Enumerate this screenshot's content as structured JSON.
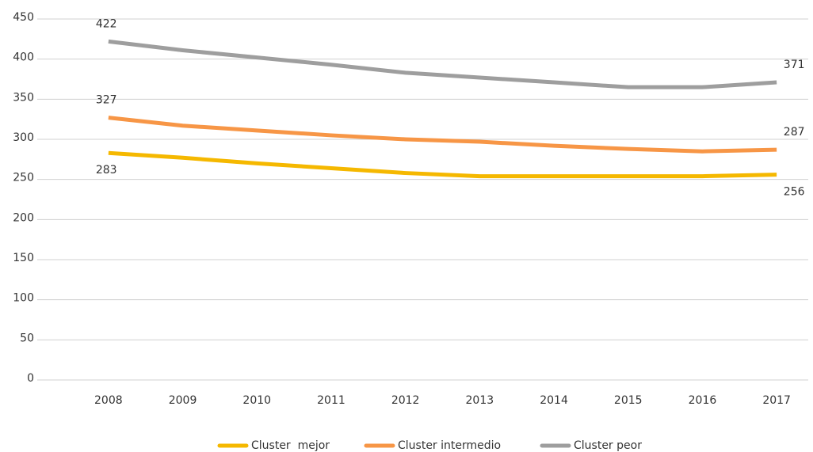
{
  "chart_data": {
    "type": "line",
    "categories": [
      "2008",
      "2009",
      "2010",
      "2011",
      "2012",
      "2013",
      "2014",
      "2015",
      "2016",
      "2017"
    ],
    "series": [
      {
        "name": "Cluster  mejor",
        "color": "#f5b800",
        "values": [
          283,
          277,
          270,
          264,
          258,
          254,
          254,
          254,
          254,
          256
        ]
      },
      {
        "name": "Cluster intermedio",
        "color": "#f79646",
        "values": [
          327,
          317,
          311,
          305,
          300,
          297,
          292,
          288,
          285,
          287
        ]
      },
      {
        "name": "Cluster peor",
        "color": "#9e9e9e",
        "values": [
          422,
          411,
          402,
          393,
          383,
          377,
          371,
          365,
          365,
          371
        ]
      }
    ],
    "ylim": [
      0,
      450
    ],
    "yticks": [
      0,
      50,
      100,
      150,
      200,
      250,
      300,
      350,
      400,
      450
    ],
    "grid": true
  }
}
